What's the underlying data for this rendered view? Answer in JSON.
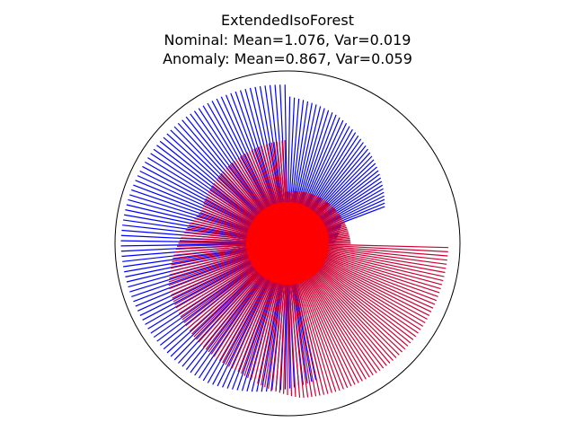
{
  "chart_data": {
    "type": "polar-radial-lines",
    "title": {
      "line1": "ExtendedIsoForest",
      "line2": "Nominal: Mean=1.076, Var=0.019",
      "line3": "Anomaly: Mean=0.867, Var=0.059"
    },
    "rmax": 1.5,
    "grid": false,
    "series": [
      {
        "key": "nominal",
        "color": "#0000ff",
        "segments": [
          {
            "from_deg": 0,
            "to_deg": 20,
            "r_start": 0.4,
            "r_end": 0.5
          },
          {
            "from_deg": 20,
            "to_deg": 70,
            "r_start": 0.9,
            "r_end": 1.2
          },
          {
            "from_deg": 70,
            "to_deg": 90,
            "r_start": 1.2,
            "r_end": 1.28
          },
          {
            "from_deg": 90,
            "to_deg": 180,
            "r_start": 1.38,
            "r_end": 1.45
          },
          {
            "from_deg": 180,
            "to_deg": 240,
            "r_start": 1.45,
            "r_end": 1.4
          },
          {
            "from_deg": 240,
            "to_deg": 285,
            "r_start": 1.4,
            "r_end": 1.2
          }
        ]
      },
      {
        "key": "anomaly",
        "color": "#cc0033",
        "segments": [
          {
            "from_deg": 0,
            "to_deg": 90,
            "r_start": 0.55,
            "r_end": 0.45
          },
          {
            "from_deg": 90,
            "to_deg": 160,
            "r_start": 0.9,
            "r_end": 0.8
          },
          {
            "from_deg": 160,
            "to_deg": 200,
            "r_start": 0.8,
            "r_end": 1.1
          },
          {
            "from_deg": 200,
            "to_deg": 250,
            "r_start": 1.1,
            "r_end": 1.2
          },
          {
            "from_deg": 250,
            "to_deg": 275,
            "r_start": 1.2,
            "r_end": 1.35
          },
          {
            "from_deg": 275,
            "to_deg": 360,
            "r_start": 1.35,
            "r_end": 1.4
          }
        ]
      }
    ],
    "core_color": "#ff0000"
  }
}
